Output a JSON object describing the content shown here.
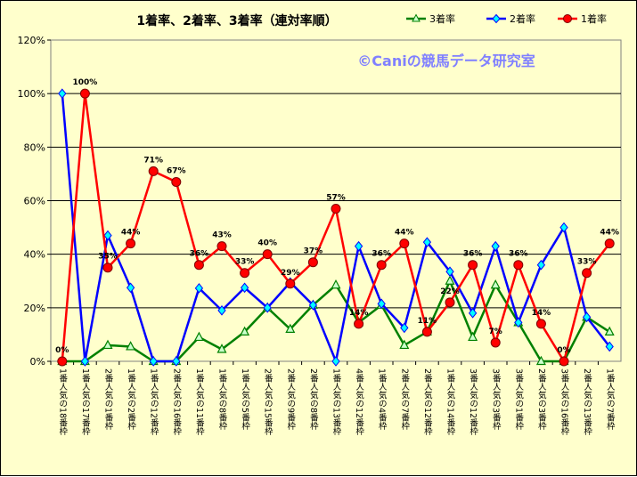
{
  "chart_data": {
    "type": "line",
    "title": "1着率、2着率、3着率（連対率順）",
    "watermark": "©Caniの競馬データ研究室",
    "ylim": [
      0,
      120
    ],
    "yticks": [
      "0%",
      "20%",
      "40%",
      "60%",
      "80%",
      "100%",
      "120%"
    ],
    "grid": true,
    "legend_position": "top-right",
    "categories": [
      "1番人気の18番枠",
      "1番人気の17番枠",
      "2番人気の1番枠",
      "1番人気の2番枠",
      "1番人気の12番枠",
      "2番人気の16番枠",
      "1番人気の11番枠",
      "1番人気の8番枠",
      "1番人気の5番枠",
      "2番人気の15番枠",
      "2番人気の9番枠",
      "2番人気の8番枠",
      "1番人気の13番枠",
      "4番人気の12番枠",
      "1番人気の4番枠",
      "2番人気の7番枠",
      "2番人気の12番枠",
      "1番人気の14番枠",
      "3番人気の12番枠",
      "3番人気の3番枠",
      "3番人気の1番枠",
      "2番人気の3番枠",
      "3番人気の16番枠",
      "2番人気の13番枠",
      "1番人気の7番枠"
    ],
    "series": [
      {
        "name": "3着率",
        "color": "#008000",
        "marker": "triangle",
        "values": [
          0,
          0,
          6,
          5.5,
          0,
          0,
          9,
          4.5,
          11,
          20,
          12,
          21,
          28.5,
          14.5,
          21,
          6,
          11,
          30,
          9,
          28.5,
          14.5,
          0,
          0,
          16.5,
          11
        ]
      },
      {
        "name": "2着率",
        "color": "#0000ff",
        "marker": "diamond",
        "values": [
          100,
          0,
          47,
          27.5,
          0,
          0,
          27.3,
          19,
          27.5,
          20,
          29.5,
          21,
          0,
          43,
          21.5,
          12.5,
          44.5,
          33.5,
          18,
          43,
          14.5,
          36,
          50,
          16.5,
          5.5
        ]
      },
      {
        "name": "1着率",
        "color": "#ff0000",
        "marker": "circle",
        "values": [
          0,
          100,
          35,
          44,
          71,
          67,
          36,
          43,
          33,
          40,
          29,
          37,
          57,
          14,
          36,
          44,
          11,
          22,
          36,
          7,
          36,
          14,
          0,
          33,
          44
        ],
        "labels": [
          "0%",
          "100%",
          "35%",
          "44%",
          "71%",
          "67%",
          "36%",
          "43%",
          "33%",
          "40%",
          "29%",
          "37%",
          "57%",
          "14%",
          "36%",
          "44%",
          "11%",
          "22%",
          "36%",
          "7%",
          "36%",
          "14%",
          "0%",
          "33%",
          "44%"
        ]
      }
    ]
  }
}
